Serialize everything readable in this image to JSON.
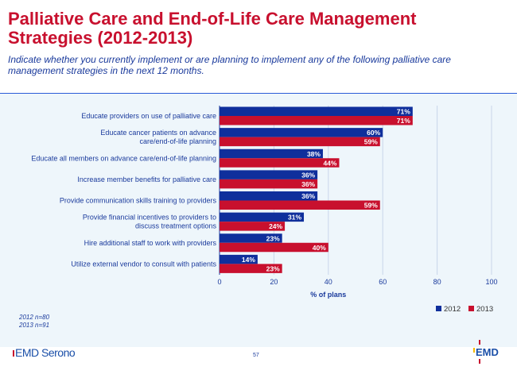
{
  "header": {
    "title": "Palliative Care and End-of-Life Care Management Strategies (2012-2013)",
    "subtitle": "Indicate whether you currently implement or are planning to implement any of the following palliative care management strategies in the next 12 months."
  },
  "chart_data": {
    "type": "bar",
    "orientation": "horizontal",
    "categories": [
      [
        "Educate providers on use of palliative care"
      ],
      [
        "Educate cancer patients on advance",
        "care/end-of-life planning"
      ],
      [
        "Educate all members on advance care/end-of-life planning"
      ],
      [
        "Increase member benefits for palliative care"
      ],
      [
        "Provide communication skills training to providers"
      ],
      [
        "Provide financial incentives to providers to",
        "discuss treatment options"
      ],
      [
        "Hire additional staff to work with providers"
      ],
      [
        "Utilize external vendor to consult with patients"
      ]
    ],
    "series": [
      {
        "name": "2012",
        "color": "#0f2f9c",
        "values": [
          71,
          60,
          38,
          36,
          36,
          31,
          23,
          14
        ]
      },
      {
        "name": "2013",
        "color": "#c8102e",
        "values": [
          71,
          59,
          44,
          36,
          59,
          24,
          40,
          23
        ]
      }
    ],
    "value_suffix": "%",
    "xlabel": "% of plans",
    "xlim": [
      0,
      100
    ],
    "xticks": [
      "0",
      "20",
      "40",
      "60",
      "80",
      "100"
    ],
    "grid": true,
    "legend": "bottom-right"
  },
  "footnote": [
    "2012 n=80",
    "2013 n=91"
  ],
  "footer": {
    "brand_left": "EMD Serono",
    "page_number": "57",
    "brand_right": "EMD"
  }
}
